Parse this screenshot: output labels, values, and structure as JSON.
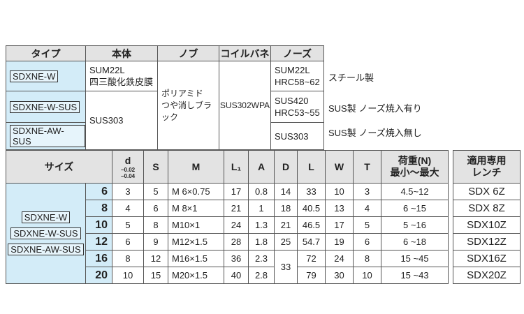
{
  "type_table": {
    "header": [
      "タイプ",
      "本体",
      "ノブ",
      "コイルバネ",
      "ノーズ"
    ],
    "rows": [
      {
        "type": "SDXNE-W",
        "body": [
          "SUM22L",
          "四三酸化鉄皮膜"
        ],
        "nose": [
          "SUM22L",
          "HRC58~62"
        ],
        "note": "スチール製"
      },
      {
        "type": "SDXNE-W-SUS",
        "body": [
          "SUS303"
        ],
        "nose": [
          "SUS420",
          "HRC53~55"
        ],
        "note": "SUS製 ノーズ焼入有り"
      },
      {
        "type": "SDXNE-AW-SUS",
        "nose": [
          "SUS303"
        ],
        "note": "SUS製 ノーズ焼入無し"
      }
    ],
    "knob": [
      "ポリアミド",
      "つや消しブラック"
    ],
    "spring": "SUS302WPA"
  },
  "size_table": {
    "header": {
      "size": "サイズ",
      "d": "d",
      "d_tol": [
        "−0.02",
        "−0.04"
      ],
      "S": "S",
      "M": "M",
      "L1": "L₁",
      "A": "A",
      "D": "D",
      "L": "L",
      "W": "W",
      "T": "T",
      "load": [
        "荷重(N)",
        "最小～最大"
      ],
      "wrench": [
        "適用専用",
        "レンチ"
      ]
    },
    "types": [
      "SDXNE-W",
      "SDXNE-W-SUS",
      "SDXNE-AW-SUS"
    ],
    "rows": [
      {
        "size": "6",
        "d": "3",
        "S": "5",
        "M": "M 6×0.75",
        "L1": "17",
        "A": "0.8",
        "D": "14",
        "L": "33",
        "W": "10",
        "T": "3",
        "load": "4.5~12",
        "wrench": "SDX 6Z"
      },
      {
        "size": "8",
        "d": "4",
        "S": "6",
        "M": "M 8×1",
        "L1": "21",
        "A": "1",
        "D": "18",
        "L": "40.5",
        "W": "13",
        "T": "4",
        "load": "6 ~15",
        "wrench": "SDX 8Z"
      },
      {
        "size": "10",
        "d": "5",
        "S": "8",
        "M": "M10×1",
        "L1": "24",
        "A": "1.3",
        "D": "21",
        "L": "46.5",
        "W": "17",
        "T": "5",
        "load": "5 ~16",
        "wrench": "SDX10Z"
      },
      {
        "size": "12",
        "d": "6",
        "S": "9",
        "M": "M12×1.5",
        "L1": "28",
        "A": "1.8",
        "D": "25",
        "L": "54.7",
        "W": "19",
        "T": "6",
        "load": "6 ~18",
        "wrench": "SDX12Z"
      },
      {
        "size": "16",
        "d": "8",
        "S": "12",
        "M": "M16×1.5",
        "L1": "36",
        "A": "2.3",
        "D": "33",
        "L": "72",
        "W": "24",
        "T": "8",
        "load": "15 ~45",
        "wrench": "SDX16Z"
      },
      {
        "size": "20",
        "d": "10",
        "S": "15",
        "M": "M20×1.5",
        "L1": "40",
        "A": "2.8",
        "L": "79",
        "W": "30",
        "T": "10",
        "load": "15 ~43",
        "wrench": "SDX20Z"
      }
    ]
  }
}
